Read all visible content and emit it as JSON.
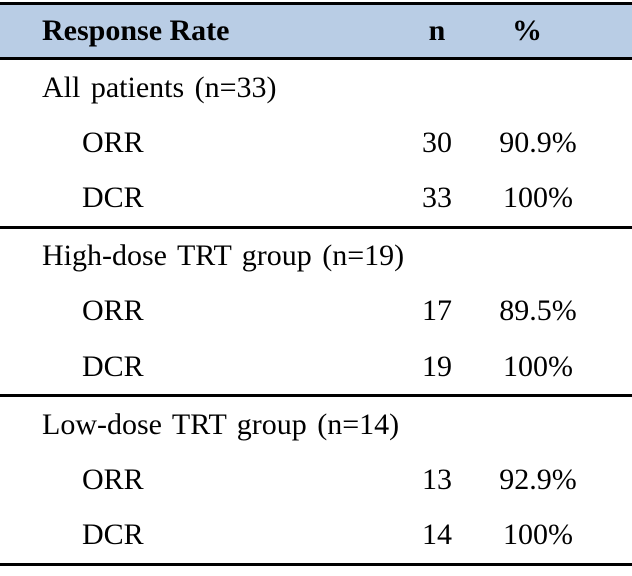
{
  "table": {
    "header": {
      "response_rate": "Response Rate",
      "n": "n",
      "percent": "%"
    },
    "sections": [
      {
        "label": "All patients (n=33)",
        "rows": [
          {
            "label": "ORR",
            "n": "30",
            "pct": "90.9%"
          },
          {
            "label": "DCR",
            "n": "33",
            "pct": "100%"
          }
        ]
      },
      {
        "label": "High-dose TRT group (n=19)",
        "rows": [
          {
            "label": "ORR",
            "n": "17",
            "pct": "89.5%"
          },
          {
            "label": "DCR",
            "n": "19",
            "pct": "100%"
          }
        ]
      },
      {
        "label": "Low-dose TRT group (n=14)",
        "rows": [
          {
            "label": "ORR",
            "n": "13",
            "pct": "92.9%"
          },
          {
            "label": "DCR",
            "n": "14",
            "pct": "100%"
          }
        ]
      }
    ],
    "colors": {
      "header_bg": "#b9cde5",
      "border": "#000000",
      "text": "#000000"
    }
  },
  "chart_data": {
    "type": "table",
    "title": "Response Rate",
    "columns": [
      "Response Rate",
      "n",
      "%"
    ],
    "rows": [
      [
        "All patients (n=33)",
        "",
        ""
      ],
      [
        "ORR",
        "30",
        "90.9%"
      ],
      [
        "DCR",
        "33",
        "100%"
      ],
      [
        "High-dose TRT group (n=19)",
        "",
        ""
      ],
      [
        "ORR",
        "17",
        "89.5%"
      ],
      [
        "DCR",
        "19",
        "100%"
      ],
      [
        "Low-dose TRT group (n=14)",
        "",
        ""
      ],
      [
        "ORR",
        "13",
        "92.9%"
      ],
      [
        "DCR",
        "14",
        "100%"
      ]
    ]
  }
}
